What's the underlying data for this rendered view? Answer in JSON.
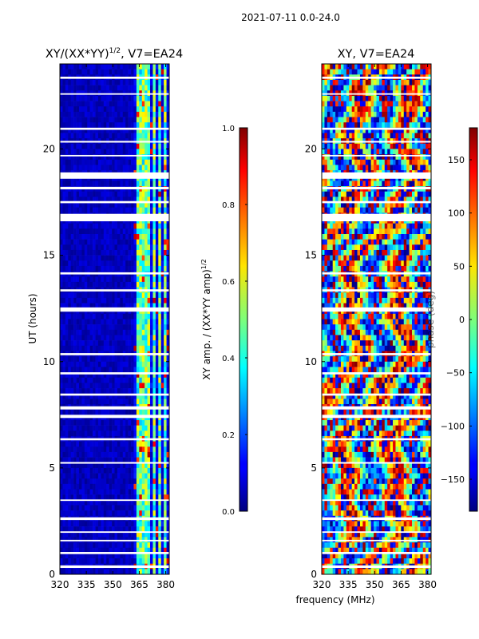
{
  "chart_data": [
    {
      "type": "heatmap",
      "suptitle": "2021-07-11 0.0-24.0",
      "title_main": "XY/(XX*YY)",
      "title_sup": "1/2",
      "title_tail": ", V7=EA24",
      "ylabel": "UT (hours)",
      "xlabel": "",
      "xlim": [
        320,
        382
      ],
      "ylim": [
        0,
        24
      ],
      "xticks": [
        320,
        335,
        350,
        365,
        380
      ],
      "yticks": [
        0,
        5,
        10,
        15,
        20
      ],
      "colorbar": {
        "label_main": "XY amp. / (XX*YY amp)",
        "label_sup": "1/2",
        "range": [
          0.0,
          1.0
        ],
        "ticks": [
          "0.0",
          "0.2",
          "0.4",
          "0.6",
          "0.8",
          "1.0"
        ],
        "colormap": "jet"
      },
      "gaps_hours": [
        [
          0.3,
          0.42
        ],
        [
          0.95,
          1.05
        ],
        [
          1.55,
          1.62
        ],
        [
          1.95,
          2.02
        ],
        [
          2.55,
          2.68
        ],
        [
          3.45,
          3.52
        ],
        [
          5.2,
          5.28
        ],
        [
          6.3,
          6.4
        ],
        [
          7.35,
          7.5
        ],
        [
          7.75,
          7.9
        ],
        [
          8.4,
          8.5
        ],
        [
          9.4,
          9.5
        ],
        [
          10.3,
          10.4
        ],
        [
          12.35,
          12.55
        ],
        [
          13.3,
          13.4
        ],
        [
          14.1,
          14.2
        ],
        [
          16.6,
          16.95
        ],
        [
          17.45,
          17.55
        ],
        [
          18.1,
          18.22
        ],
        [
          18.6,
          18.9
        ],
        [
          19.65,
          19.72
        ],
        [
          20.3,
          20.38
        ],
        [
          20.9,
          21.0
        ],
        [
          22.55,
          22.62
        ],
        [
          23.3,
          23.4
        ]
      ],
      "high_amplitude_band_mhz": [
        362,
        382
      ]
    },
    {
      "type": "heatmap",
      "title": "XY, V7=EA24",
      "xlabel": "frequency (MHz)",
      "ylabel": "",
      "xlim": [
        320,
        382
      ],
      "ylim": [
        0,
        24
      ],
      "xticks": [
        320,
        335,
        350,
        365,
        380
      ],
      "yticks": [
        0,
        5,
        10,
        15,
        20
      ],
      "colorbar": {
        "label": "phase (deg)",
        "range": [
          -180,
          180
        ],
        "ticks": [
          "150",
          "100",
          "50",
          "0",
          "−50",
          "−100",
          "−150"
        ],
        "tick_values": [
          150,
          100,
          50,
          0,
          -50,
          -100,
          -150
        ],
        "colormap": "jet"
      },
      "gaps_hours": [
        [
          0.3,
          0.42
        ],
        [
          0.95,
          1.05
        ],
        [
          1.55,
          1.62
        ],
        [
          1.95,
          2.02
        ],
        [
          2.55,
          2.68
        ],
        [
          3.45,
          3.52
        ],
        [
          5.2,
          5.28
        ],
        [
          6.3,
          6.4
        ],
        [
          7.35,
          7.5
        ],
        [
          7.75,
          7.9
        ],
        [
          8.4,
          8.5
        ],
        [
          9.4,
          9.5
        ],
        [
          10.3,
          10.4
        ],
        [
          12.35,
          12.55
        ],
        [
          13.3,
          13.4
        ],
        [
          14.1,
          14.2
        ],
        [
          16.6,
          16.95
        ],
        [
          17.45,
          17.55
        ],
        [
          18.1,
          18.22
        ],
        [
          18.6,
          18.9
        ],
        [
          19.65,
          19.72
        ],
        [
          20.3,
          20.38
        ],
        [
          20.9,
          21.0
        ],
        [
          22.55,
          22.62
        ],
        [
          23.3,
          23.4
        ]
      ]
    }
  ]
}
